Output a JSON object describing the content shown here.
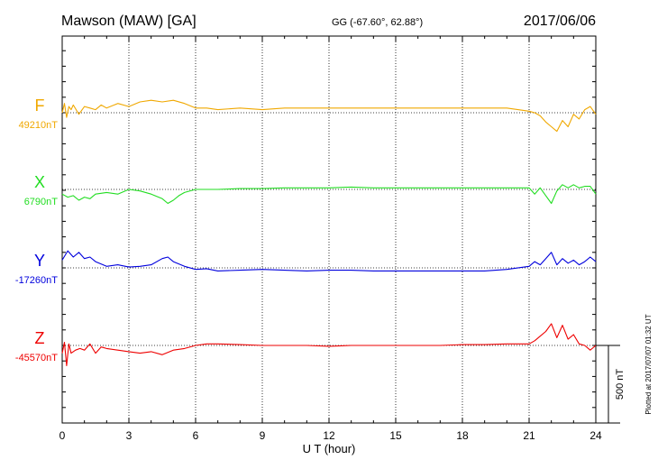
{
  "chart_data": {
    "type": "line",
    "title_left": "Mawson (MAW)  [GA]",
    "title_center": "GG (-67.60°,  62.88°)",
    "title_right": "2017/06/06",
    "xlabel": "U T (hour)",
    "xlim": [
      0,
      24
    ],
    "x_ticks": [
      0,
      3,
      6,
      9,
      12,
      15,
      18,
      21,
      24
    ],
    "x_tick_labels": [
      "0",
      "3",
      "6",
      "9",
      "12",
      "15",
      "18",
      "21",
      "24"
    ],
    "scale_label": "500 nT",
    "scale_nT": 500,
    "plotted_note": "Plotted at 2017/07/07 01:32 UT",
    "grid": true,
    "series": [
      {
        "name": "F",
        "baseline_label": "49210nT",
        "baseline_nT": 49210,
        "color": "#f0a800",
        "x": [
          0,
          0.1,
          0.2,
          0.3,
          0.4,
          0.5,
          0.75,
          1.0,
          1.25,
          1.5,
          1.75,
          2.0,
          2.5,
          3.0,
          3.5,
          4.0,
          4.5,
          5.0,
          5.5,
          6.0,
          6.5,
          7.0,
          8.0,
          9.0,
          10.0,
          11.0,
          12.0,
          13.0,
          14.0,
          15.0,
          16.0,
          17.0,
          18.0,
          19.0,
          20.0,
          20.5,
          21.0,
          21.25,
          21.5,
          21.75,
          22.0,
          22.25,
          22.5,
          22.75,
          23.0,
          23.25,
          23.5,
          23.75,
          24.0
        ],
        "y": [
          49210,
          49270,
          49180,
          49250,
          49230,
          49260,
          49200,
          49250,
          49240,
          49230,
          49260,
          49240,
          49270,
          49250,
          49280,
          49290,
          49280,
          49290,
          49270,
          49240,
          49240,
          49230,
          49240,
          49230,
          49240,
          49240,
          49240,
          49240,
          49240,
          49240,
          49240,
          49240,
          49240,
          49240,
          49240,
          49230,
          49220,
          49210,
          49190,
          49150,
          49120,
          49090,
          49160,
          49120,
          49200,
          49170,
          49230,
          49250,
          49200
        ]
      },
      {
        "name": "X",
        "baseline_label": "6790nT",
        "baseline_nT": 6790,
        "color": "#22dd22",
        "x": [
          0,
          0.25,
          0.5,
          0.75,
          1.0,
          1.25,
          1.5,
          2.0,
          2.5,
          3.0,
          3.5,
          4.0,
          4.5,
          4.75,
          5.0,
          5.25,
          5.5,
          6.0,
          6.5,
          7.0,
          8.0,
          9.0,
          10.0,
          11.0,
          12.0,
          13.0,
          14.0,
          15.0,
          16.0,
          17.0,
          18.0,
          19.0,
          20.0,
          21.0,
          21.25,
          21.5,
          21.75,
          22.0,
          22.25,
          22.5,
          22.75,
          23.0,
          23.25,
          23.5,
          23.75,
          24.0
        ],
        "y": [
          6760,
          6740,
          6750,
          6720,
          6740,
          6730,
          6760,
          6770,
          6760,
          6790,
          6780,
          6760,
          6730,
          6700,
          6720,
          6750,
          6770,
          6790,
          6790,
          6790,
          6795,
          6795,
          6800,
          6800,
          6800,
          6805,
          6800,
          6800,
          6800,
          6800,
          6800,
          6800,
          6800,
          6800,
          6760,
          6800,
          6750,
          6700,
          6780,
          6820,
          6800,
          6820,
          6800,
          6810,
          6810,
          6760
        ]
      },
      {
        "name": "Y",
        "baseline_label": "-17260nT",
        "baseline_nT": -17260,
        "color": "#0000dd",
        "x": [
          0,
          0.25,
          0.5,
          0.75,
          1.0,
          1.25,
          1.5,
          2.0,
          2.5,
          3.0,
          3.5,
          4.0,
          4.5,
          4.75,
          5.0,
          5.5,
          6.0,
          6.5,
          7.0,
          8.0,
          9.0,
          10.0,
          11.0,
          12.0,
          13.0,
          14.0,
          15.0,
          16.0,
          17.0,
          18.0,
          19.0,
          20.0,
          21.0,
          21.25,
          21.5,
          21.75,
          22.0,
          22.25,
          22.5,
          22.75,
          23.0,
          23.25,
          23.5,
          23.75,
          24.0
        ],
        "y": [
          -17210,
          -17150,
          -17190,
          -17160,
          -17200,
          -17190,
          -17220,
          -17250,
          -17240,
          -17255,
          -17250,
          -17240,
          -17200,
          -17190,
          -17220,
          -17250,
          -17270,
          -17265,
          -17280,
          -17275,
          -17270,
          -17275,
          -17280,
          -17275,
          -17275,
          -17280,
          -17280,
          -17280,
          -17280,
          -17280,
          -17280,
          -17270,
          -17250,
          -17220,
          -17240,
          -17200,
          -17160,
          -17240,
          -17200,
          -17230,
          -17210,
          -17240,
          -17220,
          -17190,
          -17220
        ]
      },
      {
        "name": "Z",
        "baseline_label": "-45570nT",
        "baseline_nT": -45570,
        "color": "#ee0000",
        "x": [
          0,
          0.1,
          0.2,
          0.3,
          0.4,
          0.6,
          0.8,
          1.0,
          1.25,
          1.5,
          1.75,
          2.0,
          2.5,
          3.0,
          3.5,
          4.0,
          4.5,
          5.0,
          5.5,
          6.0,
          6.5,
          7.0,
          8.0,
          9.0,
          10.0,
          11.0,
          12.0,
          13.0,
          14.0,
          15.0,
          16.0,
          17.0,
          18.0,
          19.0,
          20.0,
          21.0,
          21.25,
          21.5,
          21.75,
          22.0,
          22.25,
          22.5,
          22.75,
          23.0,
          23.25,
          23.5,
          23.75,
          24.0
        ],
        "y": [
          -45620,
          -45550,
          -45700,
          -45560,
          -45620,
          -45600,
          -45590,
          -45600,
          -45560,
          -45620,
          -45580,
          -45590,
          -45600,
          -45610,
          -45620,
          -45610,
          -45630,
          -45600,
          -45590,
          -45570,
          -45560,
          -45560,
          -45565,
          -45570,
          -45570,
          -45570,
          -45575,
          -45570,
          -45570,
          -45570,
          -45570,
          -45570,
          -45565,
          -45565,
          -45560,
          -45560,
          -45540,
          -45510,
          -45480,
          -45430,
          -45520,
          -45440,
          -45530,
          -45500,
          -45560,
          -45570,
          -45600,
          -45570
        ]
      }
    ]
  }
}
